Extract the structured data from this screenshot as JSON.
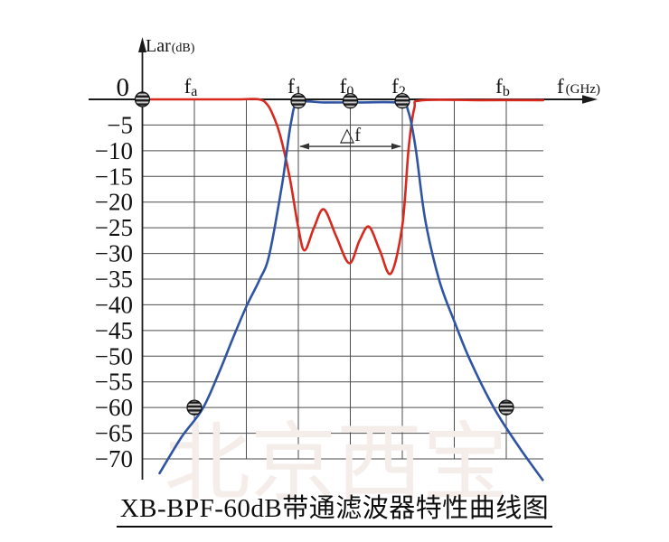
{
  "title": {
    "text": "XB-BPF-60dB带通滤波器特性曲线图"
  },
  "watermark": {
    "text": "北京西宝",
    "color": "#f5ede9"
  },
  "colors": {
    "red_curve": "#d8291f",
    "blue_curve": "#2f54a3",
    "grid": "#4d4d4d",
    "axis": "#1a1a1a",
    "text": "#111111",
    "annotation": "#333333"
  },
  "chart_data": {
    "type": "line",
    "title": "XB-BPF-60dB带通滤波器特性曲线图",
    "grid_on": true,
    "y_axis": {
      "label": "Lar",
      "unit": "(dB)",
      "ticks": [
        0,
        -5,
        -10,
        -15,
        -20,
        -25,
        -30,
        -35,
        -40,
        -45,
        -50,
        -55,
        -60,
        -65,
        -70
      ],
      "range": [
        -70,
        0
      ]
    },
    "x_axis": {
      "label": "f",
      "unit": "(GHz)",
      "markers": [
        {
          "base": "f",
          "sub": "a",
          "u": 1
        },
        {
          "base": "f",
          "sub": "1",
          "u": 3
        },
        {
          "base": "f",
          "sub": "0",
          "u": 4
        },
        {
          "base": "f",
          "sub": "2",
          "u": 5
        },
        {
          "base": "f",
          "sub": "b",
          "u": 7
        }
      ],
      "gridline_units": [
        1,
        2,
        3,
        4,
        5,
        6,
        7
      ],
      "right_edge_u": 7.713
    },
    "annotation": {
      "label": "△f",
      "from_u": 3,
      "to_u": 5,
      "at_db": -9.15
    },
    "series": [
      {
        "name": "curve_red_inband_ripple",
        "color": "#d8291f",
        "points": [
          [
            0,
            0
          ],
          [
            1,
            0
          ],
          [
            1.8,
            0
          ],
          [
            2.24,
            0
          ],
          [
            2.41,
            -1.1
          ],
          [
            2.53,
            -3.5
          ],
          [
            2.65,
            -7
          ],
          [
            2.83,
            -15
          ],
          [
            3.0,
            -25
          ],
          [
            3.12,
            -29.4
          ],
          [
            3.3,
            -25
          ],
          [
            3.49,
            -21.4
          ],
          [
            3.73,
            -26.7
          ],
          [
            3.98,
            -31.9
          ],
          [
            4.18,
            -27.4
          ],
          [
            4.36,
            -24.8
          ],
          [
            4.57,
            -29.5
          ],
          [
            4.78,
            -33.9
          ],
          [
            5.0,
            -24.6
          ],
          [
            5.12,
            -9.7
          ],
          [
            5.23,
            -1.8
          ],
          [
            5.37,
            -0.2
          ],
          [
            6.5,
            -0.15
          ],
          [
            7.71,
            -0.15
          ]
        ]
      },
      {
        "name": "curve_blue_bandpass_skirt",
        "color": "#2f54a3",
        "points": [
          [
            0.33,
            -72.8
          ],
          [
            0.75,
            -65.8
          ],
          [
            1.16,
            -60.2
          ],
          [
            1.49,
            -52.8
          ],
          [
            1.75,
            -46.3
          ],
          [
            2.01,
            -40.1
          ],
          [
            2.25,
            -35.2
          ],
          [
            2.44,
            -30.3
          ],
          [
            2.69,
            -16.4
          ],
          [
            2.86,
            -4.5
          ],
          [
            3.0,
            -0.7
          ],
          [
            3.5,
            -0.6
          ],
          [
            4.2,
            -0.6
          ],
          [
            4.96,
            -0.7
          ],
          [
            5.12,
            -2.5
          ],
          [
            5.26,
            -9.7
          ],
          [
            5.44,
            -23.4
          ],
          [
            5.71,
            -35.2
          ],
          [
            6.0,
            -43.2
          ],
          [
            6.3,
            -50.7
          ],
          [
            6.77,
            -60.2
          ],
          [
            7.26,
            -67.9
          ],
          [
            7.7,
            -74.1
          ]
        ]
      }
    ],
    "spec_markers": [
      [
        0,
        0
      ],
      [
        3,
        -0.3
      ],
      [
        4,
        -0.3
      ],
      [
        5,
        -0.3
      ],
      [
        1,
        -60
      ],
      [
        7,
        -60
      ]
    ]
  }
}
